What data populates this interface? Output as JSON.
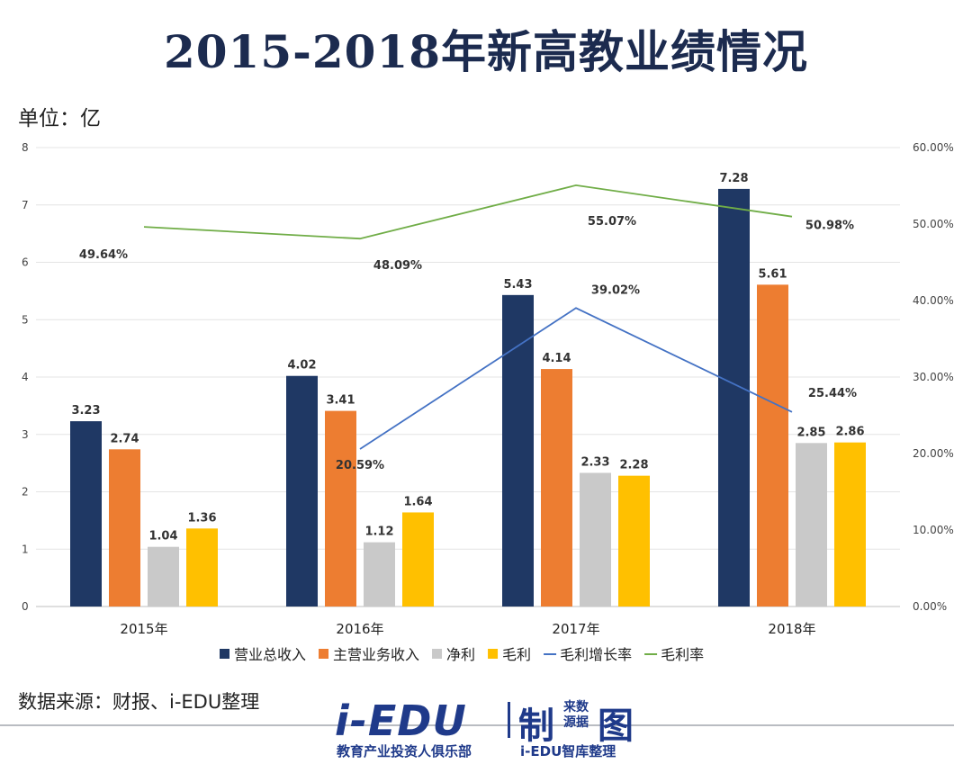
{
  "title": "2015-2018年新高教业绩情况",
  "unit_label": "单位：亿",
  "source": "数据来源：财报、i-EDU整理",
  "logo": {
    "main": "i-EDU",
    "zhi": "制",
    "small_top": "来数",
    "small_bottom": "源据",
    "tu": "图",
    "sub_left": "教育产业投资人俱乐部",
    "sub_right": "i-EDU智库整理"
  },
  "colors": {
    "revenue": "#1f3864",
    "main_revenue": "#ed7d31",
    "net_profit": "#c9c9c9",
    "gross_profit": "#ffc000",
    "gross_growth": "#4472c4",
    "gross_margin": "#70ad47"
  },
  "chart_data": {
    "type": "bar",
    "title": "2015-2018年新高教业绩情况",
    "categories": [
      "2015年",
      "2016年",
      "2017年",
      "2018年"
    ],
    "ylabel": "单位：亿",
    "ylim": [
      0,
      8
    ],
    "y_ticks": [
      "0",
      "1",
      "2",
      "3",
      "4",
      "5",
      "6",
      "7",
      "8"
    ],
    "y2lim": [
      0,
      60
    ],
    "y2_ticks": [
      "0.00%",
      "10.00%",
      "20.00%",
      "30.00%",
      "40.00%",
      "50.00%",
      "60.00%"
    ],
    "grid": true,
    "legend": "bottom",
    "series": [
      {
        "name": "营业总收入",
        "type": "bar",
        "color": "#1f3864",
        "values": [
          3.23,
          4.02,
          5.43,
          7.28
        ],
        "labels": [
          "3.23",
          "4.02",
          "5.43",
          "7.28"
        ]
      },
      {
        "name": "主营业务收入",
        "type": "bar",
        "color": "#ed7d31",
        "values": [
          2.74,
          3.41,
          4.14,
          5.61
        ],
        "labels": [
          "2.74",
          "3.41",
          "4.14",
          "5.61"
        ]
      },
      {
        "name": "净利",
        "type": "bar",
        "color": "#c9c9c9",
        "values": [
          1.04,
          1.12,
          2.33,
          2.85
        ],
        "labels": [
          "1.04",
          "1.12",
          "2.33",
          "2.85"
        ]
      },
      {
        "name": "毛利",
        "type": "bar",
        "color": "#ffc000",
        "values": [
          1.36,
          1.64,
          2.28,
          2.86
        ],
        "labels": [
          "1.36",
          "1.64",
          "2.28",
          "2.86"
        ]
      },
      {
        "name": "毛利增长率",
        "type": "line",
        "axis": "right",
        "color": "#4472c4",
        "values": [
          null,
          20.59,
          39.02,
          25.44
        ],
        "labels": [
          "",
          "20.59%",
          "39.02%",
          "25.44%"
        ]
      },
      {
        "name": "毛利率",
        "type": "line",
        "axis": "right",
        "color": "#70ad47",
        "values": [
          49.64,
          48.09,
          55.07,
          50.98
        ],
        "labels": [
          "49.64%",
          "48.09%",
          "55.07%",
          "50.98%"
        ]
      }
    ]
  }
}
